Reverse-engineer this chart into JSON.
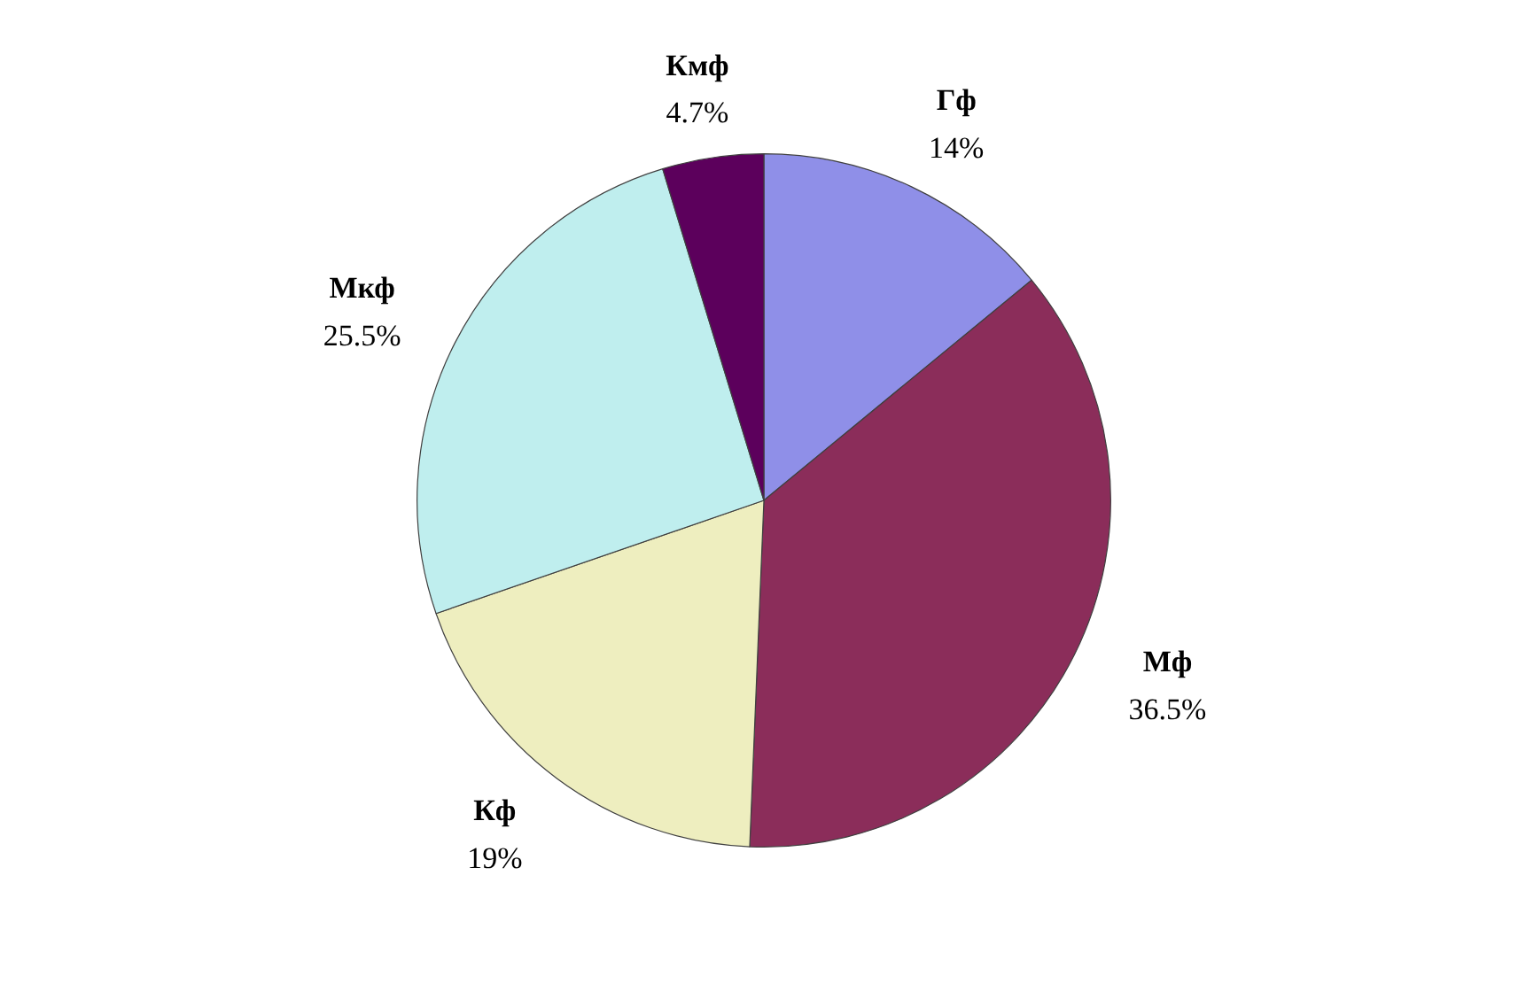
{
  "chart_data": {
    "type": "pie",
    "categories": [
      "Гф",
      "Мф",
      "Кф",
      "Мкф",
      "Кмф"
    ],
    "values": [
      14,
      36.5,
      19,
      25.5,
      4.7
    ],
    "value_labels": [
      "14%",
      "36.5%",
      "19%",
      "25.5%",
      "4.7%"
    ],
    "colors": [
      "#8f8fe8",
      "#8b2d5a",
      "#eeeebf",
      "#bfeeee",
      "#5c005c"
    ]
  }
}
